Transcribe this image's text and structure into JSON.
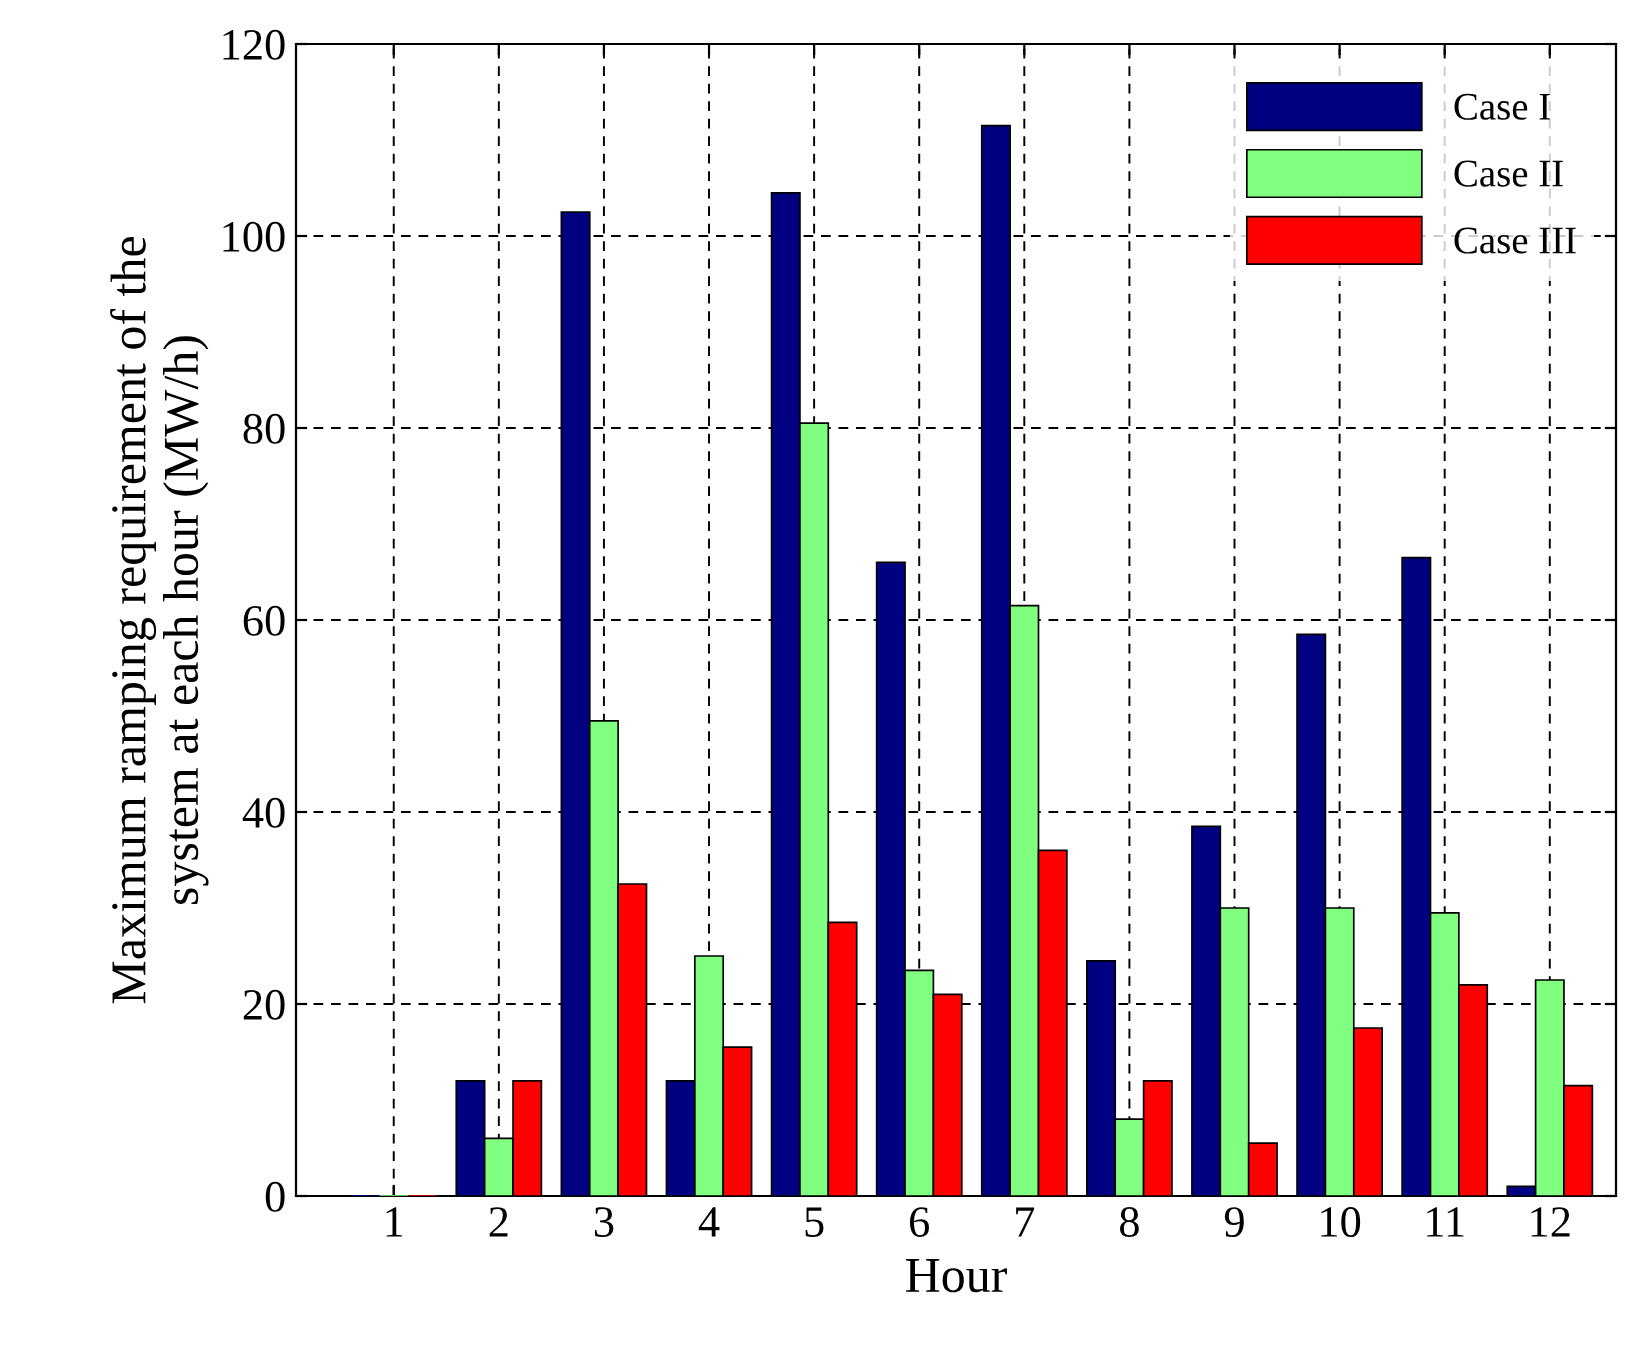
{
  "chart_data": {
    "type": "bar",
    "xlabel": "Hour",
    "ylabel": "Maximum ramping requirement of the\nsystem at each hour (MW/h)",
    "categories": [
      "1",
      "2",
      "3",
      "4",
      "5",
      "6",
      "7",
      "8",
      "9",
      "10",
      "11",
      "12"
    ],
    "series": [
      {
        "name": "Case I",
        "color": "#000080",
        "values": [
          0,
          12,
          102.5,
          12,
          104.5,
          66,
          111.5,
          24.5,
          38.5,
          58.5,
          66.5,
          1
        ]
      },
      {
        "name": "Case II",
        "color": "#80ff80",
        "values": [
          0,
          6,
          49.5,
          25,
          80.5,
          23.5,
          61.5,
          8,
          30,
          30,
          29.5,
          22.5
        ]
      },
      {
        "name": "Case III",
        "color": "#ff0000",
        "values": [
          0,
          12,
          32.5,
          15.5,
          28.5,
          21,
          36,
          12,
          5.5,
          17.5,
          22,
          11.5
        ]
      }
    ],
    "ylim": [
      0,
      120
    ],
    "yticks": [
      0,
      20,
      40,
      60,
      80,
      100,
      120
    ],
    "grid": true,
    "legend": "top right"
  }
}
